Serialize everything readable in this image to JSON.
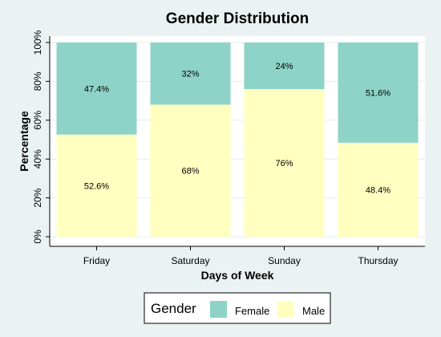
{
  "chart_data": {
    "type": "bar",
    "stacked": true,
    "title": "Gender Distribution",
    "xlabel": "Days of Week",
    "ylabel": "Percentage",
    "categories": [
      "Friday",
      "Saturday",
      "Sunday",
      "Thursday"
    ],
    "series": [
      {
        "name": "Male",
        "values": [
          52.6,
          68,
          76,
          48.4
        ],
        "labels": [
          "52.6%",
          "68%",
          "76%",
          "48.4%"
        ],
        "color": "#ffffc0"
      },
      {
        "name": "Female",
        "values": [
          47.4,
          32,
          24,
          51.6
        ],
        "labels": [
          "47.4%",
          "32%",
          "24%",
          "51.6%"
        ],
        "color": "#8ed3c8"
      }
    ],
    "ylim": [
      0,
      100
    ],
    "yticks": [
      0,
      20,
      40,
      60,
      80,
      100
    ],
    "ytick_labels": [
      "0%",
      "20%",
      "40%",
      "60%",
      "80%",
      "100%"
    ],
    "grid": true,
    "legend": {
      "title": "Gender",
      "position": "bottom",
      "entries": [
        "Female",
        "Male"
      ]
    }
  },
  "colors": {
    "background": "#eaf2f3",
    "plot_background": "#ffffff",
    "female": "#8ed3c8",
    "male": "#ffffc0"
  }
}
